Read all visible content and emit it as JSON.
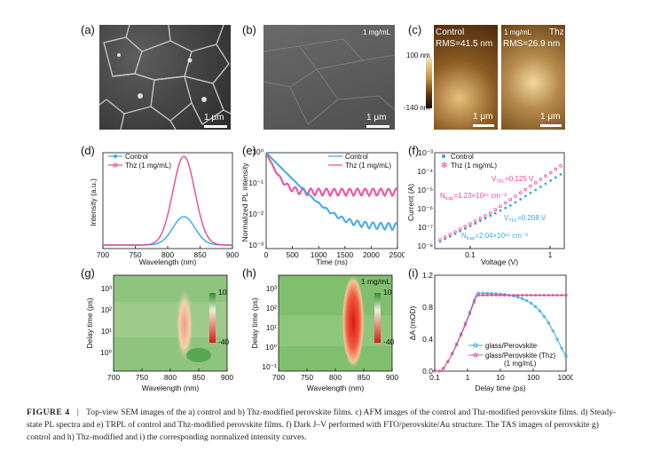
{
  "panels": {
    "a": {
      "label": "(a)",
      "scale": "1 μm"
    },
    "b": {
      "label": "(b)",
      "scale": "1 μm",
      "conc": "1 mg/mL"
    },
    "c": {
      "label": "(c)",
      "left_title": "Control",
      "left_rms": "RMS=41.5 nm",
      "right_conc": "1 mg/mL",
      "right_title": "Thz",
      "right_rms": "RMS=26.9 nm",
      "scale_left": "1 μm",
      "scale_right": "1 μm",
      "cbar_top": "100 nm",
      "cbar_bottom": "-140 nm"
    },
    "d": {
      "label": "(d)"
    },
    "e": {
      "label": "(e)"
    },
    "f": {
      "label": "(f)"
    },
    "g": {
      "label": "(g)",
      "cbar_top": "10",
      "cbar_bottom": "-40"
    },
    "h": {
      "label": "(h)",
      "cbar_top": "10",
      "cbar_bottom": "-40",
      "conc": "1 mg/mL"
    },
    "i": {
      "label": "(i)"
    }
  },
  "chart_data": [
    {
      "panel": "d",
      "type": "line",
      "xlabel": "Wavelength (nm)",
      "ylabel": "Intensity (a.u.)",
      "xlim": [
        700,
        900
      ],
      "xticks": [
        "700",
        "750",
        "800",
        "850",
        "900"
      ],
      "series": [
        {
          "name": "Control",
          "peak_x": 825,
          "peak_y": 0.32,
          "fwhm": 40,
          "color": "#3aa7e0"
        },
        {
          "name": "Thz  (1 mg/mL)",
          "peak_x": 825,
          "peak_y": 1.0,
          "fwhm": 40,
          "color": "#e8489a"
        }
      ]
    },
    {
      "panel": "e",
      "type": "line",
      "xlabel": "Time (ns)",
      "ylabel": "Normalized PL intensity",
      "xlim": [
        0,
        2500
      ],
      "xticks": [
        "0",
        "500",
        "1000",
        "1500",
        "2000",
        "2500"
      ],
      "yticks": [
        "10⁻³",
        "10⁻²",
        "10⁻¹",
        "10⁰"
      ],
      "series": [
        {
          "name": "Control",
          "end_value": 0.005,
          "color": "#3aa7e0"
        },
        {
          "name": "Thz  (1 mg/mL)",
          "end_value": 0.06,
          "color": "#e8489a"
        }
      ]
    },
    {
      "panel": "f",
      "type": "scatter",
      "xlabel": "Voltage (V)",
      "ylabel": "Current (A)",
      "xticks": [
        "0.1",
        "1"
      ],
      "yticks": [
        "10⁻⁸",
        "10⁻⁷",
        "10⁻⁶",
        "10⁻⁵",
        "10⁻⁴",
        "10⁻³"
      ],
      "series": [
        {
          "name": "Control",
          "color": "#3aa7e0"
        },
        {
          "name": "Thz  (1 mg/mL)",
          "color": "#e8489a"
        }
      ],
      "annotations": [
        {
          "text_main": "V",
          "text_sub": "TFL",
          "text_rest": "=0.125 V",
          "color": "#e8489a"
        },
        {
          "text_main": "N",
          "text_sub": "trap",
          "text_rest": "=1.23×10¹⁵ cm⁻³",
          "color": "#e8489a"
        },
        {
          "text_main": "V",
          "text_sub": "TFL",
          "text_rest": "=0.208 V",
          "color": "#3aa7e0"
        },
        {
          "text_main": "N",
          "text_sub": "trap",
          "text_rest": "=2.04×10¹⁵ cm⁻³",
          "color": "#3aa7e0"
        }
      ]
    },
    {
      "panel": "g",
      "type": "heatmap",
      "xlabel": "Wavelength (nm)",
      "ylabel": "Delay time (ps)",
      "xticks": [
        "700",
        "750",
        "800",
        "850",
        "900"
      ],
      "yticks": [
        "10⁰",
        "10¹",
        "10²",
        "10³"
      ]
    },
    {
      "panel": "h",
      "type": "heatmap",
      "xlabel": "Wavelength (nm)",
      "ylabel": "Delay time (ps)",
      "xticks": [
        "700",
        "750",
        "800",
        "850",
        "900"
      ],
      "yticks": [
        "10⁻¹",
        "10⁰",
        "10¹",
        "10²",
        "10³"
      ]
    },
    {
      "panel": "i",
      "type": "line",
      "xlabel": "Delay time (ps)",
      "ylabel": "ΔA (mOD)",
      "xticks": [
        "0.1",
        "1",
        "10",
        "100",
        "1000"
      ],
      "yticks": [
        "0.0",
        "0.4",
        "0.8",
        "1.2"
      ],
      "series": [
        {
          "name": "glass/Perovskite",
          "color": "#3aa7e0"
        },
        {
          "name": "glass/Perovskite (Thz)",
          "sub": "(1 mg/mL)",
          "color": "#e8489a"
        }
      ]
    }
  ],
  "caption": {
    "label": "FIGURE 4",
    "sep": "|",
    "text": "Top-view SEM images of the a) control and b) Thz-modified perovskite films. c) AFM images of the control and Thz-modified perovskite films. d) Steady-state PL spectra and e) TRPL of control and Thz-modified perovskite films. f) Dark J–V performed with FTO/perovskite/Au structure. The TAS images of perovskite g) control and h) Thz-modified and i) the corresponding normalized intensity curves."
  }
}
